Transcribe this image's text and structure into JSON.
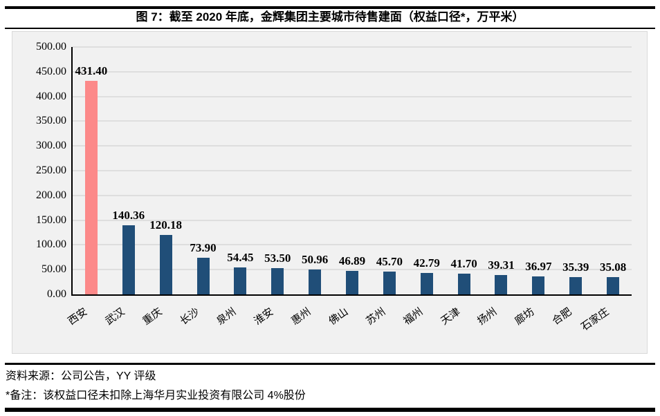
{
  "figure": {
    "title": "图 7：截至 2020 年底，金辉集团主要城市待售建面（权益口径*，万平米）"
  },
  "chart_data": {
    "type": "bar",
    "title": "截至 2020 年底，金辉集团主要城市待售建面（权益口径*，万平米）",
    "categories": [
      "西安",
      "武汉",
      "重庆",
      "长沙",
      "泉州",
      "淮安",
      "惠州",
      "佛山",
      "苏州",
      "福州",
      "天津",
      "扬州",
      "廊坊",
      "合肥",
      "石家庄"
    ],
    "values": [
      431.4,
      140.36,
      120.18,
      73.9,
      54.45,
      53.5,
      50.96,
      46.89,
      45.7,
      42.79,
      41.7,
      39.31,
      36.97,
      35.39,
      35.08
    ],
    "value_labels": [
      "431.40",
      "140.36",
      "120.18",
      "73.90",
      "54.45",
      "53.50",
      "50.96",
      "46.89",
      "45.70",
      "42.79",
      "41.70",
      "39.31",
      "36.97",
      "35.39",
      "35.08"
    ],
    "highlight_index": 0,
    "ylim": [
      0,
      500
    ],
    "ytick_step": 50,
    "ytick_decimals": 2,
    "grid": true,
    "legend_position": "none",
    "colors": {
      "bar": "#204E78",
      "highlight_bar": "#FC8989",
      "plot_background": "#F1F1F1",
      "gridline": "#DEDEDE",
      "axis": "#000000",
      "text": "#000000"
    }
  },
  "footer": {
    "source": "资料来源：公司公告，YY 评级",
    "note": "*备注：该权益口径未扣除上海华月实业投资有限公司 4%股份"
  }
}
